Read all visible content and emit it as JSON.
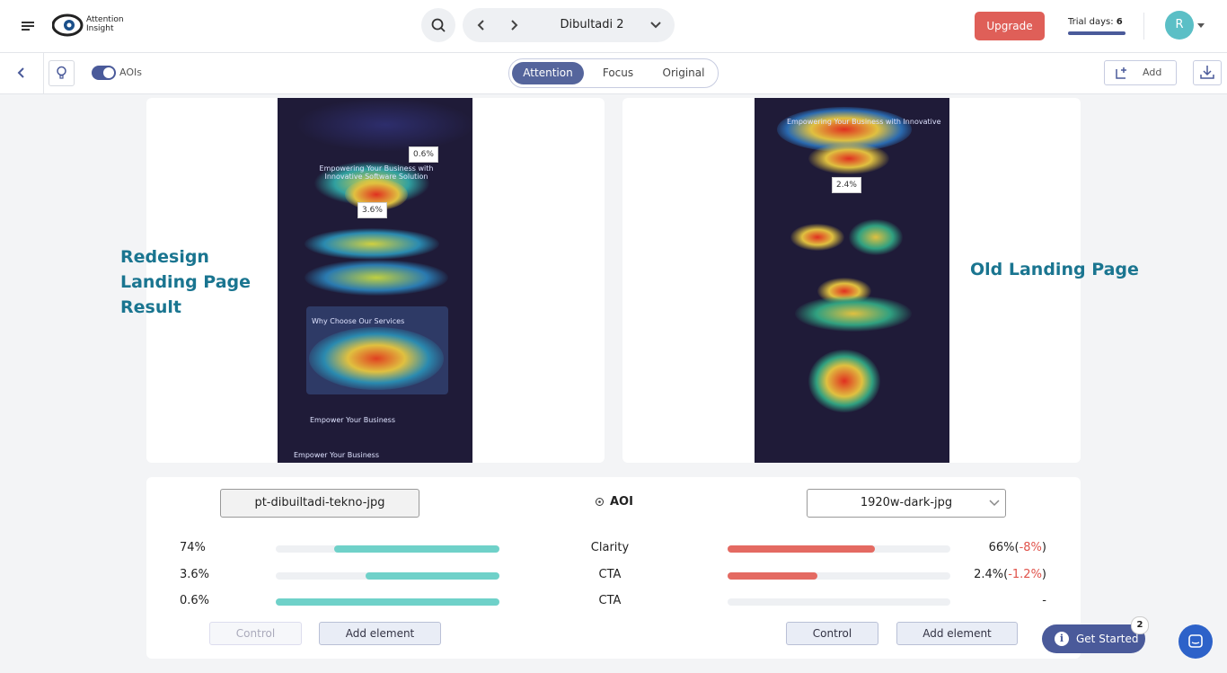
{
  "header": {
    "brand": [
      "Attention",
      "Insight"
    ],
    "project": "Dibultadi 2",
    "upgrade": "Upgrade",
    "trial_label": "Trial days:",
    "trial_days": "6",
    "avatar": "R"
  },
  "toolbar": {
    "aois": "AOIs",
    "tabs": [
      "Attention",
      "Focus",
      "Original"
    ],
    "add": "Add"
  },
  "panels": [
    {
      "label": "Redesign Landing Page Result",
      "aoi_labels": [
        "0.6%",
        "3.6%"
      ],
      "image_texts": [
        "Empowering Your Business with Innovative Software Solution",
        "Why Choose Our Services",
        "Empower Your Business",
        "Empower Your Business"
      ]
    },
    {
      "label": "Old Landing Page",
      "aoi_labels": [
        "2.4%"
      ],
      "image_texts": [
        "Empowering Your Business with Innovative"
      ]
    }
  ],
  "comparison": {
    "left_file": "pt-dibuiltadi-tekno-jpg",
    "aoi_title": "AOI",
    "right_file": "1920w-dark-jpg",
    "rows": [
      {
        "left": "74%",
        "metric": "Clarity",
        "right_parts": [
          "66%(",
          "-8%",
          ")"
        ]
      },
      {
        "left": "3.6%",
        "metric": "CTA",
        "right_parts": [
          "2.4%(",
          "-1.2%",
          ")"
        ]
      },
      {
        "left": "0.6%",
        "metric": "CTA",
        "right_parts": [
          "-"
        ]
      }
    ],
    "left_buttons": [
      "Control",
      "Add element"
    ],
    "right_buttons": [
      "Control",
      "Add element"
    ]
  },
  "help": {
    "get_started": "Get Started",
    "badge": "2"
  }
}
